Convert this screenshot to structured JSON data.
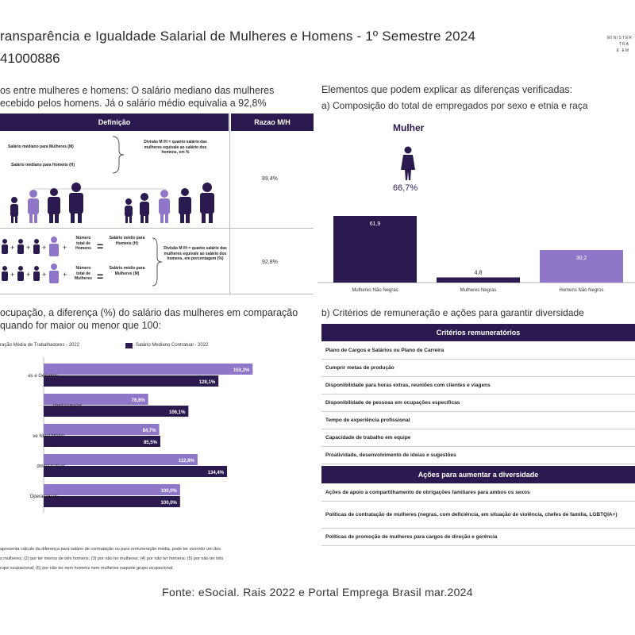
{
  "header": {
    "title": "ransparência e Igualdade Salarial de Mulheres e Homens - 1º Semestre 2024",
    "cnpj": "41000886",
    "ministry_lines": [
      "MINISTÉR",
      "TRA",
      "E EM"
    ]
  },
  "intro": {
    "line1": "os entre mulheres e homens: O salário mediano das mulheres",
    "line2": "ecebido pelos homens. Já o salário médio equivalia a 92,8%"
  },
  "left_table": {
    "col_def": "Definição",
    "col_ratio": "Razao M/H",
    "row1": {
      "label_women": "Salário mediano para Mulheres (M)",
      "label_men": "Salário mediano para Homens (H)",
      "note": "Divisão M /H = quanto salário das mulheres equivale ao salário dos homens, em %",
      "value": "89,4%"
    },
    "row2": {
      "total_women_top": "Número total de Homens",
      "salary_men": "Salário médio para Homens (H)",
      "total_women_bottom": "Número total de Mulheres",
      "salary_women": "Salário médio para Mulheres (M)",
      "note": "Divisão M /H = quanto salário das mulheres equivale ao salário dos homens, em porcentagem (%)",
      "value": "92,8%"
    }
  },
  "right_top": {
    "heading": "Elementos que podem explicar as diferenças verificadas:",
    "subheading": "a) Composição do total de empregados por sexo e etnia e raça",
    "gender_label": "Mulher",
    "gender_pct": "66,7%"
  },
  "chart_data": [
    {
      "type": "bar",
      "title": "Composição do total de empregados por sexo e etnia e raça",
      "categories": [
        "Mulheres Não Negras",
        "Mulheres Negras",
        "Homens Não Negros"
      ],
      "values": [
        61.9,
        4.8,
        30.2
      ],
      "labels": [
        "61,9",
        "4,8",
        "30,2"
      ],
      "colors": [
        "#2b1a4f",
        "#2b1a4f",
        "#8e77c8"
      ],
      "ylim": [
        0,
        70
      ]
    },
    {
      "type": "bar",
      "orientation": "horizontal",
      "title": "Diferença (%) do salário das mulheres em comparação",
      "legend": [
        "ração Média de Trabalhadores - 2022",
        "Salário Mediano Contratual - 2022"
      ],
      "categories": [
        "es e Gerentes",
        "nível superior",
        "ve Nível Médio",
        "dministrativos",
        "Operacionais"
      ],
      "series": [
        {
          "name": "ração Média de Trabalhadores - 2022",
          "values": [
            153.2,
            76.6,
            84.7,
            112.8,
            100.0
          ],
          "labels": [
            "153,2%",
            "76,6%",
            "84,7%",
            "112,8%",
            "100,0%"
          ]
        },
        {
          "name": "Salário Mediano Contratual - 2022",
          "values": [
            128.1,
            106.1,
            85.5,
            134.4,
            100.0
          ],
          "labels": [
            "128,1%",
            "106,1%",
            "85,5%",
            "134,4%",
            "100,0%"
          ]
        }
      ],
      "xlim": [
        0,
        160
      ]
    }
  ],
  "section_b": {
    "line1": "ocupação, a diferença (%) do salário das mulheres em comparação",
    "line2": "quando for maior ou menor que 100:"
  },
  "criteria": {
    "heading": "b) Critérios de remuneração e ações para garantir diversidade",
    "table1_head": "Critérios remuneratórios",
    "table1_rows": [
      "Plano de Cargos e Salários ou Plano de Carreira",
      "Cumprir metas de produção",
      "Disponibilidade para horas extras, reuniões com clientes e viagens",
      "Disponibilidade de pessoas em ocupações específicas",
      "Tempo de experiência profissional",
      "Capacidade de trabalho em equipe",
      "Proatividade, desenvolvimento de ideias e sugestões"
    ],
    "table2_head": "Ações para aumentar a diversidade",
    "table2_rows": [
      "Ações de apoio a compartilhamento de obrigações familiares para ambos os sexos",
      "Políticas de contratação de mulheres (negras, com deficiência, em situação de violência, chefes de familia, LGBTQIA+)",
      "Políticas de promoção de mulheres para cargos de direção e gerência"
    ]
  },
  "footnote": {
    "line1": "apresenta cálculo da diferença  para salário de contratação ou para remuneração média, pode ter ocorrido um dos",
    "line2": "s mulheres; (2) por ter menos de três homens; (3) por não ter mulheres; (4) por não ter homens; (5) por não ter três",
    "line3": "rupo ocupacional; (6) por não ter nem homens nem mulheres naquele grupo ocupacional."
  },
  "source": "Fonte: eSocial. Rais 2022 e Portal Emprega Brasil mar.2024"
}
